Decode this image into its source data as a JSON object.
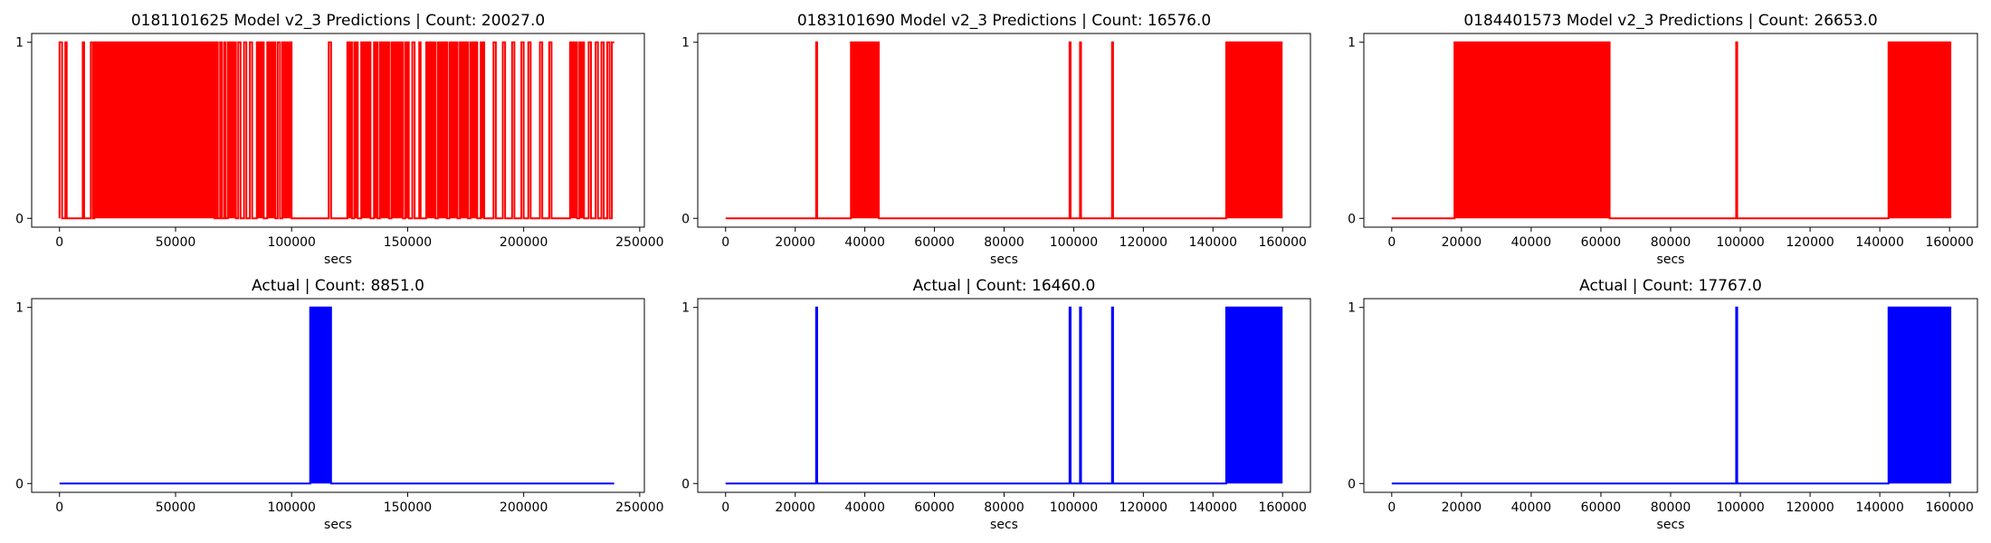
{
  "colors": {
    "prediction": "#ff0000",
    "actual": "#0000ff",
    "axis": "#000000"
  },
  "chart_data": [
    {
      "type": "line",
      "title": "0181101625 Model v2_3 Predictions | Count: 20027.0",
      "xlabel": "secs",
      "ylabel": "",
      "xlim": [
        -12000,
        252000
      ],
      "ylim": [
        -0.05,
        1.05
      ],
      "xticks": [
        "0",
        "50000",
        "100000",
        "150000",
        "200000",
        "250000"
      ],
      "yticks": [
        "0",
        "1"
      ],
      "color_key": "prediction",
      "series": [
        {
          "on_intervals": [
            [
              0,
              1100
            ],
            [
              2500,
              3100
            ],
            [
              10000,
              10600
            ],
            [
              13500,
              14400
            ],
            [
              15000,
              66800
            ],
            [
              67500,
              68200
            ],
            [
              69200,
              70000
            ],
            [
              71000,
              71500
            ],
            [
              72500,
              76000
            ],
            [
              77000,
              78000
            ],
            [
              79500,
              80500
            ],
            [
              82000,
              83000
            ],
            [
              85000,
              88000
            ],
            [
              89500,
              93000
            ],
            [
              94000,
              95000
            ],
            [
              96000,
              100000
            ],
            [
              116000,
              117000
            ],
            [
              124000,
              126000
            ],
            [
              127000,
              128500
            ],
            [
              130000,
              134000
            ],
            [
              135500,
              137000
            ],
            [
              138000,
              142000
            ],
            [
              143000,
              148000
            ],
            [
              149000,
              150500
            ],
            [
              152000,
              153000
            ],
            [
              155000,
              155600
            ],
            [
              158000,
              162000
            ],
            [
              163000,
              167000
            ],
            [
              168000,
              171500
            ],
            [
              172500,
              176000
            ],
            [
              177000,
              180000
            ],
            [
              181500,
              183000
            ],
            [
              187000,
              188000
            ],
            [
              191000,
              192000
            ],
            [
              195000,
              196000
            ],
            [
              199000,
              200000
            ],
            [
              202000,
              203000
            ],
            [
              207000,
              208000
            ],
            [
              211000,
              212000
            ],
            [
              220000,
              223000
            ],
            [
              224000,
              226000
            ],
            [
              228000,
              229000
            ],
            [
              231000,
              232000
            ],
            [
              233500,
              234500
            ],
            [
              236000,
              237000
            ],
            [
              238000,
              239000
            ]
          ],
          "x_end": 239000
        }
      ]
    },
    {
      "type": "line",
      "title": "0183101690 Model v2_3 Predictions | Count: 16576.0",
      "xlabel": "secs",
      "ylabel": "",
      "xlim": [
        -8000,
        168000
      ],
      "ylim": [
        -0.05,
        1.05
      ],
      "xticks": [
        "0",
        "20000",
        "40000",
        "60000",
        "80000",
        "100000",
        "120000",
        "140000",
        "160000"
      ],
      "yticks": [
        "0",
        "1"
      ],
      "color_key": "prediction",
      "series": [
        {
          "on_intervals": [
            [
              26000,
              26300
            ],
            [
              36000,
              44000
            ],
            [
              98800,
              99100
            ],
            [
              101800,
              102100
            ],
            [
              111000,
              111300
            ],
            [
              143800,
              160000
            ]
          ],
          "x_end": 160000
        }
      ]
    },
    {
      "type": "line",
      "title": "0184401573 Model v2_3 Predictions | Count: 26653.0",
      "xlabel": "secs",
      "ylabel": "",
      "xlim": [
        -8000,
        168000
      ],
      "ylim": [
        -0.05,
        1.05
      ],
      "xticks": [
        "0",
        "20000",
        "40000",
        "60000",
        "80000",
        "100000",
        "120000",
        "140000",
        "160000"
      ],
      "yticks": [
        "0",
        "1"
      ],
      "color_key": "prediction",
      "series": [
        {
          "on_intervals": [
            [
              18000,
              62500
            ],
            [
              98800,
              99100
            ],
            [
              142500,
              160500
            ]
          ],
          "x_end": 160500
        }
      ]
    },
    {
      "type": "line",
      "title": "Actual | Count: 8851.0",
      "xlabel": "secs",
      "ylabel": "",
      "xlim": [
        -12000,
        252000
      ],
      "ylim": [
        -0.05,
        1.05
      ],
      "xticks": [
        "0",
        "50000",
        "100000",
        "150000",
        "200000",
        "250000"
      ],
      "yticks": [
        "0",
        "1"
      ],
      "color_key": "actual",
      "series": [
        {
          "on_intervals": [
            [
              108000,
              117000
            ]
          ],
          "x_end": 239000
        }
      ]
    },
    {
      "type": "line",
      "title": "Actual | Count: 16460.0",
      "xlabel": "secs",
      "ylabel": "",
      "xlim": [
        -8000,
        168000
      ],
      "ylim": [
        -0.05,
        1.05
      ],
      "xticks": [
        "0",
        "20000",
        "40000",
        "60000",
        "80000",
        "100000",
        "120000",
        "140000",
        "160000"
      ],
      "yticks": [
        "0",
        "1"
      ],
      "color_key": "actual",
      "series": [
        {
          "on_intervals": [
            [
              26000,
              26300
            ],
            [
              98800,
              99100
            ],
            [
              101800,
              102100
            ],
            [
              111000,
              111300
            ],
            [
              143800,
              160000
            ]
          ],
          "x_end": 160000
        }
      ]
    },
    {
      "type": "line",
      "title": "Actual | Count: 17767.0",
      "xlabel": "secs",
      "ylabel": "",
      "xlim": [
        -8000,
        168000
      ],
      "ylim": [
        -0.05,
        1.05
      ],
      "xticks": [
        "0",
        "20000",
        "40000",
        "60000",
        "80000",
        "100000",
        "120000",
        "140000",
        "160000"
      ],
      "yticks": [
        "0",
        "1"
      ],
      "color_key": "actual",
      "series": [
        {
          "on_intervals": [
            [
              98800,
              99100
            ],
            [
              142500,
              160500
            ]
          ],
          "x_end": 160500
        }
      ]
    }
  ]
}
